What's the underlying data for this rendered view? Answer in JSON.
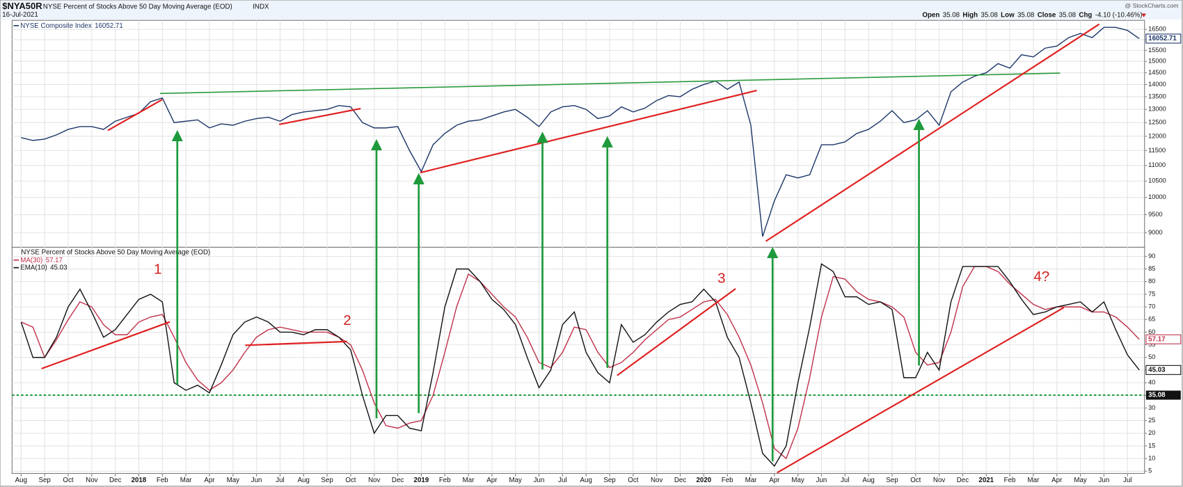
{
  "header": {
    "symbol": "$NYA50R",
    "description": "NYSE Percent of Stocks Above 50 Day Moving Average (EOD)",
    "exchange": "INDX",
    "date": "16-Jul-2021",
    "source": "@ StockCharts.com",
    "quote": [
      {
        "label": "Open",
        "value": 35.08
      },
      {
        "label": "High",
        "value": 35.08
      },
      {
        "label": "Low",
        "value": 35.08
      },
      {
        "label": "Close",
        "value": 35.08
      }
    ],
    "change_label": "Chg",
    "change": "-4.10 (-10.46%)"
  },
  "annotations": {
    "labels": [
      "1",
      "2",
      "3",
      "4?"
    ]
  },
  "chart_data": [
    {
      "type": "line",
      "log": true,
      "grid": true,
      "ylim": [
        8620,
        16950
      ],
      "yticks": [
        9000,
        9500,
        10000,
        10500,
        11000,
        11500,
        12000,
        12500,
        13000,
        13500,
        14000,
        14500,
        15000,
        15500,
        16000,
        16500
      ],
      "series": [
        {
          "name": "NYSE Composite Index",
          "color": "#1c3668",
          "last_value": 16052.71,
          "values": [
            11950,
            11850,
            11900,
            12050,
            12250,
            12350,
            12350,
            12250,
            12550,
            12700,
            12850,
            13300,
            13450,
            12500,
            12550,
            12600,
            12300,
            12450,
            12400,
            12550,
            12650,
            12700,
            12550,
            12800,
            12900,
            12950,
            13000,
            13150,
            13100,
            12500,
            12300,
            12300,
            12350,
            11500,
            10800,
            11700,
            12100,
            12400,
            12550,
            12600,
            12750,
            12900,
            13000,
            12700,
            12350,
            12900,
            13100,
            13150,
            13000,
            12650,
            12750,
            13100,
            12900,
            13050,
            13350,
            13550,
            13500,
            13800,
            14000,
            14150,
            13800,
            14100,
            12400,
            8900,
            9900,
            10700,
            10600,
            10700,
            11700,
            11700,
            11800,
            12100,
            12250,
            12550,
            12950,
            12500,
            12600,
            12950,
            12400,
            13700,
            14100,
            14350,
            14500,
            14900,
            14700,
            15300,
            15200,
            15600,
            15700,
            16100,
            16300,
            16100,
            16600,
            16600,
            16450,
            16052.71
          ]
        }
      ]
    },
    {
      "type": "line",
      "title": "NYSE Percent of Stocks Above 50 Day Moving Average (EOD)",
      "grid": true,
      "ylim": [
        4.1,
        93.6
      ],
      "yticks": [
        5,
        10,
        15,
        20,
        25,
        30,
        35,
        40,
        45,
        50,
        55,
        60,
        65,
        70,
        75,
        80,
        85,
        90
      ],
      "reference_line": {
        "value": 35.08,
        "color": "#1e9a3c"
      },
      "categories": [
        "Aug",
        null,
        "Sep",
        null,
        "Oct",
        null,
        "Nov",
        null,
        "Dec",
        null,
        "2018",
        null,
        "Feb",
        null,
        "Mar",
        null,
        "Apr",
        null,
        "May",
        null,
        "Jun",
        null,
        "Jul",
        null,
        "Aug",
        null,
        "Sep",
        null,
        "Oct",
        null,
        "Nov",
        null,
        "Dec",
        null,
        "2019",
        null,
        "Feb",
        null,
        "Mar",
        null,
        "Apr",
        null,
        "May",
        null,
        "Jun",
        null,
        "Jul",
        null,
        "Aug",
        null,
        "Sep",
        null,
        "Oct",
        null,
        "Nov",
        null,
        "Dec",
        null,
        "2020",
        null,
        "Feb",
        null,
        "Mar",
        null,
        "Apr",
        null,
        "May",
        null,
        "Jun",
        null,
        "Jul",
        null,
        "Aug",
        null,
        "Sep",
        null,
        "Oct",
        null,
        "Nov",
        null,
        "Dec",
        null,
        "2021",
        null,
        "Feb",
        null,
        "Mar",
        null,
        "Apr",
        null,
        "May",
        null,
        "Jun",
        null,
        "Jul",
        null
      ],
      "series": [
        {
          "name": "MA(30)",
          "color": "#c0304a",
          "last_value": 57.17,
          "values": [
            64,
            62,
            50,
            57,
            65,
            72,
            70,
            63,
            59,
            59,
            64,
            66,
            67,
            58,
            48,
            41,
            37,
            40,
            45,
            52,
            58,
            61,
            62,
            61,
            60,
            60,
            60,
            58,
            55,
            45,
            32,
            23,
            22,
            24,
            25,
            35,
            52,
            70,
            83,
            80,
            75,
            70,
            66,
            58,
            48,
            46,
            52,
            62,
            61,
            52,
            46,
            48,
            52,
            57,
            61,
            65,
            66,
            69,
            72,
            73,
            67,
            58,
            47,
            32,
            14,
            10,
            22,
            42,
            66,
            82,
            81,
            76,
            73,
            72,
            70,
            66,
            52,
            47,
            48,
            60,
            78,
            86,
            86,
            84,
            79,
            75,
            71,
            69,
            70,
            70,
            70,
            68,
            68,
            66,
            62,
            57.17
          ]
        },
        {
          "name": "EMA(10)",
          "color": "#111111",
          "last_value": 45.03,
          "values": [
            64,
            50,
            50,
            58,
            70,
            77,
            68,
            58,
            61,
            67,
            73,
            75,
            72,
            40,
            37,
            39,
            36,
            47,
            59,
            64,
            66,
            64,
            60,
            60,
            59,
            61,
            61,
            58,
            53,
            35,
            20,
            27,
            27,
            22,
            21,
            44,
            70,
            85,
            85,
            80,
            73,
            69,
            63,
            50,
            38,
            45,
            63,
            68,
            52,
            44,
            40,
            63,
            56,
            59,
            64,
            68,
            71,
            72,
            77,
            72,
            58,
            50,
            32,
            12,
            7,
            15,
            40,
            62,
            87,
            84,
            74,
            74,
            71,
            72,
            69,
            42,
            42,
            52,
            45,
            72,
            86,
            86,
            86,
            86,
            80,
            73,
            67,
            68,
            70,
            71,
            72,
            68,
            72,
            61,
            51,
            45.03
          ]
        }
      ]
    }
  ]
}
